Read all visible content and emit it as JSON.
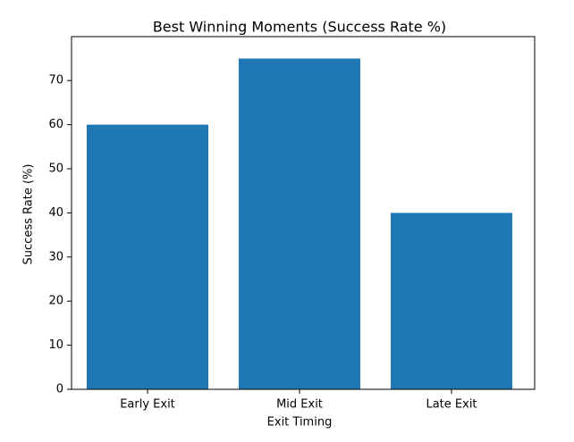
{
  "chart_data": {
    "type": "bar",
    "title": "Best Winning Moments (Success Rate %)",
    "x_label": "Exit Timing",
    "y_label": "Success Rate (%)",
    "categories": [
      "Early Exit",
      "Mid Exit",
      "Late Exit"
    ],
    "values": [
      60,
      75,
      40
    ],
    "color": "#1f77b4",
    "ylim": [
      0,
      78.75
    ],
    "yticks": [
      0,
      10,
      20,
      30,
      40,
      50,
      60,
      70
    ]
  }
}
